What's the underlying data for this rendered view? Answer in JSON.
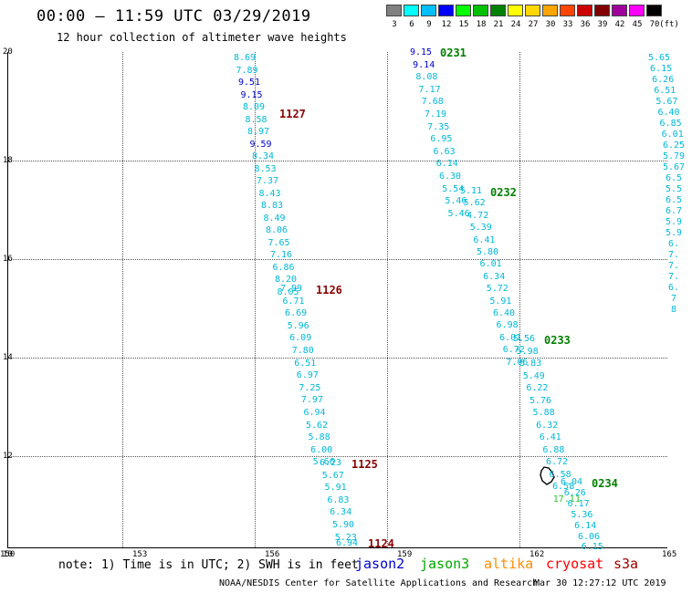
{
  "header": {
    "title": "00:00 – 11:59 UTC 03/29/2019",
    "subtitle": "12 hour collection of altimeter wave heights"
  },
  "legend": {
    "unit": "(ft)",
    "bins": [
      {
        "label": "3",
        "color": "#808080"
      },
      {
        "label": "6",
        "color": "#00ffff"
      },
      {
        "label": "9",
        "color": "#00bfff"
      },
      {
        "label": "12",
        "color": "#0000ff"
      },
      {
        "label": "15",
        "color": "#00ff00"
      },
      {
        "label": "18",
        "color": "#00c000"
      },
      {
        "label": "21",
        "color": "#008000"
      },
      {
        "label": "24",
        "color": "#ffff00"
      },
      {
        "label": "27",
        "color": "#ffd700"
      },
      {
        "label": "30",
        "color": "#ffa500"
      },
      {
        "label": "33",
        "color": "#ff4500"
      },
      {
        "label": "36",
        "color": "#cc0000"
      },
      {
        "label": "39",
        "color": "#800000"
      },
      {
        "label": "42",
        "color": "#a0009c"
      },
      {
        "label": "45",
        "color": "#ff00ff"
      },
      {
        "label": "70",
        "color": "#000000"
      }
    ]
  },
  "axes": {
    "x_ticks": [
      "150",
      "153",
      "156",
      "159",
      "162",
      "165"
    ],
    "y_ticks": [
      "20",
      "18",
      "16",
      "14",
      "12",
      "10"
    ]
  },
  "swh_colors": {
    "cyan": "#00b8d8",
    "blue": "#0000cc",
    "green": "#30c030"
  },
  "tracks": [
    {
      "pass_time": "1127",
      "values": [
        {
          "v": "8.69",
          "c": "cyan"
        },
        {
          "v": "7.89",
          "c": "cyan"
        },
        {
          "v": "9.51",
          "c": "blue"
        },
        {
          "v": "9.15",
          "c": "blue"
        },
        {
          "v": "8.09",
          "c": "cyan"
        },
        {
          "v": "8.58",
          "c": "cyan"
        },
        {
          "v": "8.97",
          "c": "cyan"
        },
        {
          "v": "9.59",
          "c": "blue"
        },
        {
          "v": "8.34",
          "c": "cyan"
        },
        {
          "v": "8.53",
          "c": "cyan"
        },
        {
          "v": "7.37",
          "c": "cyan"
        },
        {
          "v": "8.43",
          "c": "cyan"
        },
        {
          "v": "8.83",
          "c": "cyan"
        },
        {
          "v": "8.49",
          "c": "cyan"
        },
        {
          "v": "8.06",
          "c": "cyan"
        },
        {
          "v": "7.65",
          "c": "cyan"
        },
        {
          "v": "7.16",
          "c": "cyan"
        },
        {
          "v": "6.86",
          "c": "cyan"
        },
        {
          "v": "8.20",
          "c": "cyan"
        },
        {
          "v": "8.05",
          "c": "cyan"
        }
      ]
    },
    {
      "pass_time": "1126",
      "values": [
        {
          "v": "7.99",
          "c": "cyan"
        },
        {
          "v": "6.71",
          "c": "cyan"
        },
        {
          "v": "6.69",
          "c": "cyan"
        },
        {
          "v": "5.96",
          "c": "cyan"
        },
        {
          "v": "6.09",
          "c": "cyan"
        },
        {
          "v": "7.80",
          "c": "cyan"
        },
        {
          "v": "6.51",
          "c": "cyan"
        },
        {
          "v": "6.97",
          "c": "cyan"
        },
        {
          "v": "7.25",
          "c": "cyan"
        },
        {
          "v": "7.97",
          "c": "cyan"
        },
        {
          "v": "6.94",
          "c": "cyan"
        },
        {
          "v": "5.62",
          "c": "cyan"
        },
        {
          "v": "5.88",
          "c": "cyan"
        },
        {
          "v": "6.00",
          "c": "cyan"
        },
        {
          "v": "5.66",
          "c": "cyan"
        }
      ]
    },
    {
      "pass_time": "1125",
      "values": [
        {
          "v": "6.23",
          "c": "cyan"
        },
        {
          "v": "5.67",
          "c": "cyan"
        },
        {
          "v": "5.91",
          "c": "cyan"
        },
        {
          "v": "6.83",
          "c": "cyan"
        },
        {
          "v": "6.34",
          "c": "cyan"
        },
        {
          "v": "5.90",
          "c": "cyan"
        },
        {
          "v": "5.23",
          "c": "cyan"
        }
      ]
    },
    {
      "pass_time": "1124",
      "values": [
        {
          "v": "6.94",
          "c": "cyan"
        }
      ]
    },
    {
      "pass_time": "0231",
      "values": [
        {
          "v": "9.15",
          "c": "blue"
        },
        {
          "v": "9.14",
          "c": "blue"
        },
        {
          "v": "8.08",
          "c": "cyan"
        },
        {
          "v": "7.17",
          "c": "cyan"
        },
        {
          "v": "7.68",
          "c": "cyan"
        },
        {
          "v": "7.19",
          "c": "cyan"
        },
        {
          "v": "7.35",
          "c": "cyan"
        },
        {
          "v": "6.95",
          "c": "cyan"
        },
        {
          "v": "6.63",
          "c": "cyan"
        },
        {
          "v": "6.14",
          "c": "cyan"
        },
        {
          "v": "6.30",
          "c": "cyan"
        },
        {
          "v": "5.54",
          "c": "cyan"
        },
        {
          "v": "5.46",
          "c": "cyan"
        },
        {
          "v": "5.46",
          "c": "cyan"
        }
      ]
    },
    {
      "pass_time": "0232",
      "values": [
        {
          "v": "5.11",
          "c": "cyan"
        },
        {
          "v": "5.62",
          "c": "cyan"
        },
        {
          "v": "4.72",
          "c": "cyan"
        },
        {
          "v": "5.39",
          "c": "cyan"
        },
        {
          "v": "6.41",
          "c": "cyan"
        },
        {
          "v": "5.80",
          "c": "cyan"
        },
        {
          "v": "6.01",
          "c": "cyan"
        },
        {
          "v": "6.34",
          "c": "cyan"
        },
        {
          "v": "5.72",
          "c": "cyan"
        },
        {
          "v": "5.91",
          "c": "cyan"
        },
        {
          "v": "6.40",
          "c": "cyan"
        },
        {
          "v": "6.98",
          "c": "cyan"
        },
        {
          "v": "6.01",
          "c": "cyan"
        },
        {
          "v": "6.72",
          "c": "cyan"
        },
        {
          "v": "7.06",
          "c": "cyan"
        }
      ]
    },
    {
      "pass_time": "0233",
      "values": [
        {
          "v": "5.56",
          "c": "cyan"
        },
        {
          "v": "5.98",
          "c": "cyan"
        },
        {
          "v": "5.83",
          "c": "cyan"
        },
        {
          "v": "5.49",
          "c": "cyan"
        },
        {
          "v": "6.22",
          "c": "cyan"
        },
        {
          "v": "5.76",
          "c": "cyan"
        },
        {
          "v": "5.88",
          "c": "cyan"
        },
        {
          "v": "6.32",
          "c": "cyan"
        },
        {
          "v": "6.41",
          "c": "cyan"
        },
        {
          "v": "6.88",
          "c": "cyan"
        },
        {
          "v": "6.72",
          "c": "cyan"
        },
        {
          "v": "6.58",
          "c": "cyan"
        },
        {
          "v": "6.58",
          "c": "cyan"
        },
        {
          "v": "17.11",
          "c": "green"
        }
      ]
    },
    {
      "pass_time": "0234",
      "values": [
        {
          "v": "6.04",
          "c": "cyan"
        },
        {
          "v": "6.26",
          "c": "cyan"
        },
        {
          "v": "6.17",
          "c": "cyan"
        },
        {
          "v": "5.36",
          "c": "cyan"
        },
        {
          "v": "6.14",
          "c": "cyan"
        },
        {
          "v": "6.06",
          "c": "cyan"
        },
        {
          "v": "6.15",
          "c": "cyan"
        }
      ]
    },
    {
      "pass_time": "",
      "values": [
        {
          "v": "5.65",
          "c": "cyan"
        },
        {
          "v": "6.15",
          "c": "cyan"
        },
        {
          "v": "6.26",
          "c": "cyan"
        },
        {
          "v": "6.51",
          "c": "cyan"
        },
        {
          "v": "5.67",
          "c": "cyan"
        },
        {
          "v": "6.40",
          "c": "cyan"
        },
        {
          "v": "6.85",
          "c": "cyan"
        },
        {
          "v": "6.01",
          "c": "cyan"
        },
        {
          "v": "6.25",
          "c": "cyan"
        },
        {
          "v": "5.79",
          "c": "cyan"
        },
        {
          "v": "5.67",
          "c": "cyan"
        },
        {
          "v": "6.5",
          "c": "cyan"
        },
        {
          "v": "5.5",
          "c": "cyan"
        },
        {
          "v": "6.5",
          "c": "cyan"
        },
        {
          "v": "6.7",
          "c": "cyan"
        },
        {
          "v": "5.9",
          "c": "cyan"
        },
        {
          "v": "5.9",
          "c": "cyan"
        },
        {
          "v": "6.",
          "c": "cyan"
        },
        {
          "v": "7.",
          "c": "cyan"
        },
        {
          "v": "7.",
          "c": "cyan"
        },
        {
          "v": "7.",
          "c": "cyan"
        },
        {
          "v": "6.",
          "c": "cyan"
        },
        {
          "v": "7",
          "c": "cyan"
        },
        {
          "v": "8",
          "c": "cyan"
        }
      ]
    }
  ],
  "footer": {
    "note": "note:  1) Time is in UTC;  2) SWH is in feet",
    "satellites": [
      {
        "name": "jason2",
        "color": "#0000cc"
      },
      {
        "name": "jason3",
        "color": "#00aa00"
      },
      {
        "name": "altika",
        "color": "#ff8c00"
      },
      {
        "name": "cryosat",
        "color": "#ff0000"
      },
      {
        "name": "s3a",
        "color": "#a00000"
      }
    ],
    "agency": "NOAA/NESDIS Center for Satellite Applications and Research",
    "generated": "Mar 30 12:27:12 UTC 2019"
  }
}
